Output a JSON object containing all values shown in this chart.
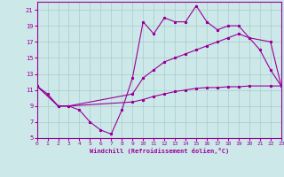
{
  "xlabel": "Windchill (Refroidissement éolien,°C)",
  "bg_color": "#cce8e8",
  "grid_color": "#aacccc",
  "line_color": "#990099",
  "xmin": 0,
  "xmax": 23,
  "ymin": 5,
  "ymax": 22,
  "yticks": [
    5,
    7,
    9,
    11,
    13,
    15,
    17,
    19,
    21
  ],
  "xticks": [
    0,
    1,
    2,
    3,
    4,
    5,
    6,
    7,
    8,
    9,
    10,
    11,
    12,
    13,
    14,
    15,
    16,
    17,
    18,
    19,
    20,
    21,
    22,
    23
  ],
  "series1_x": [
    0,
    1,
    2,
    3,
    4,
    5,
    6,
    7,
    8,
    9,
    10,
    11,
    12,
    13,
    14,
    15,
    16,
    17,
    18,
    19,
    20,
    21,
    22,
    23
  ],
  "series1_y": [
    11.5,
    10.5,
    9.0,
    9.0,
    8.5,
    7.0,
    6.0,
    5.5,
    8.5,
    12.5,
    19.5,
    18.0,
    20.0,
    19.5,
    19.5,
    21.5,
    19.5,
    18.5,
    19.0,
    19.0,
    17.5,
    16.0,
    13.5,
    11.5
  ],
  "series2_x": [
    0,
    2,
    3,
    9,
    10,
    11,
    12,
    13,
    14,
    15,
    16,
    17,
    18,
    19,
    20,
    22,
    23
  ],
  "series2_y": [
    11.5,
    9.0,
    9.0,
    9.5,
    9.8,
    10.2,
    10.5,
    10.8,
    11.0,
    11.2,
    11.3,
    11.3,
    11.4,
    11.4,
    11.5,
    11.5,
    11.5
  ],
  "series3_x": [
    0,
    2,
    3,
    9,
    10,
    11,
    12,
    13,
    14,
    15,
    16,
    17,
    18,
    19,
    20,
    22,
    23
  ],
  "series3_y": [
    11.5,
    9.0,
    9.0,
    10.5,
    12.5,
    13.5,
    14.5,
    15.0,
    15.5,
    16.0,
    16.5,
    17.0,
    17.5,
    18.0,
    17.5,
    17.0,
    11.5
  ]
}
